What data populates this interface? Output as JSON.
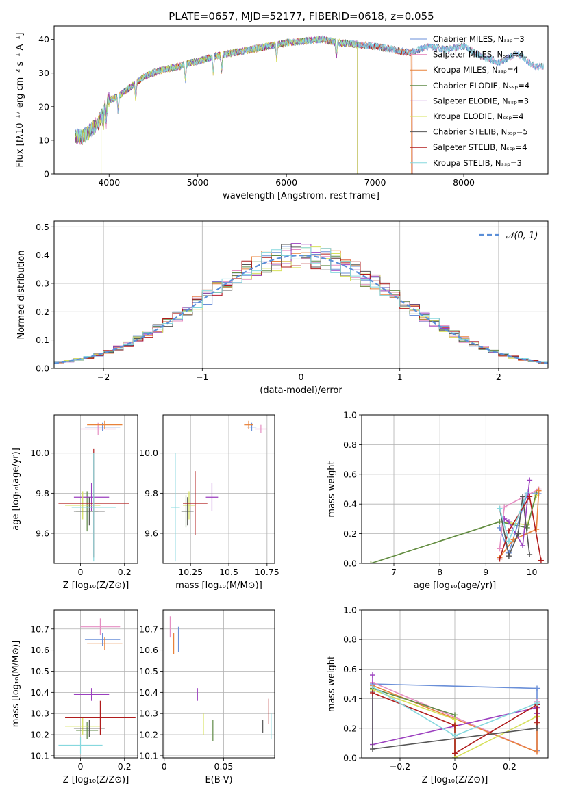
{
  "colors": {
    "chabrier_miles": "#6a8fd8",
    "salpeter_miles": "#e58ec2",
    "kroupa_miles": "#e8823a",
    "chabrier_elodie": "#5f8a46",
    "salpeter_elodie": "#9b3fbf",
    "kroupa_elodie": "#d6e05a",
    "chabrier_stelib": "#555555",
    "salpeter_stelib": "#b01c1c",
    "kroupa_stelib": "#86d8de",
    "normal": "#5b8fd8"
  },
  "chart_data": [
    {
      "id": "spectrum",
      "type": "line",
      "title": "PLATE=0657, MJD=52177, FIBERID=0618, z=0.055",
      "xlabel": "wavelength [Angstrom, rest frame]",
      "ylabel": "Flux [fλ10⁻¹⁷ erg cm⁻² s⁻¹ A⁻¹]",
      "xlim": [
        3380,
        8950
      ],
      "ylim": [
        0,
        44
      ],
      "xticks": [
        4000,
        5000,
        6000,
        7000,
        8000
      ],
      "yticks": [
        0,
        10,
        20,
        30,
        40
      ],
      "legend_position": "top-right",
      "series": [
        {
          "name": "Chabrier MILES, Nₛₛₚ=3",
          "color_key": "chabrier_miles"
        },
        {
          "name": "Salpeter MILES, Nₛₛₚ=4",
          "color_key": "salpeter_miles"
        },
        {
          "name": "Kroupa MILES, Nₛₛₚ=4",
          "color_key": "kroupa_miles"
        },
        {
          "name": "Chabrier ELODIE, Nₛₛₚ=4",
          "color_key": "chabrier_elodie"
        },
        {
          "name": "Salpeter ELODIE, Nₛₛₚ=3",
          "color_key": "salpeter_elodie"
        },
        {
          "name": "Kroupa ELODIE, Nₛₛₚ=4",
          "color_key": "kroupa_elodie"
        },
        {
          "name": "Chabrier STELIB, Nₛₛₚ=5",
          "color_key": "chabrier_stelib"
        },
        {
          "name": "Salpeter STELIB, Nₛₛₚ=4",
          "color_key": "salpeter_stelib"
        },
        {
          "name": "Kroupa STELIB, Nₛₛₚ=3",
          "color_key": "kroupa_stelib"
        }
      ],
      "continuum": {
        "x": [
          3600,
          3700,
          3800,
          3900,
          3950,
          4000,
          4100,
          4200,
          4300,
          4400,
          4500,
          4600,
          4700,
          4800,
          4900,
          5000,
          5200,
          5400,
          5600,
          5800,
          6000,
          6200,
          6400,
          6600,
          6800,
          7000,
          7200,
          7400,
          7600,
          7800,
          8000,
          8200,
          8400,
          8600,
          8800
        ],
        "y": [
          11,
          11,
          13,
          16,
          20,
          22,
          23,
          25,
          27,
          29,
          30,
          31,
          31.5,
          32,
          33,
          33.5,
          35,
          36,
          37,
          38,
          39,
          39.5,
          40,
          39,
          38.5,
          38,
          37,
          36,
          38,
          37,
          38,
          35,
          33,
          36,
          32
        ]
      }
    },
    {
      "id": "residuals",
      "type": "histogram",
      "xlabel": "(data-model)/error",
      "ylabel": "Normed distribution",
      "xlim": [
        -2.5,
        2.5
      ],
      "ylim": [
        0,
        0.52
      ],
      "xticks": [
        -2,
        -1,
        0,
        1,
        2
      ],
      "yticks": [
        0.0,
        0.1,
        0.2,
        0.3,
        0.4,
        0.5
      ],
      "legend_position": "top-right",
      "normal_label": "𝒩(0, 1)",
      "bin_width": 0.1
    },
    {
      "id": "age_vs_Z",
      "type": "scatter",
      "xlabel": "Z [log₁₀(Z/Z⊙)]",
      "ylabel": "age  [log₁₀(age/yr)]",
      "xlim": [
        -0.12,
        0.26
      ],
      "ylim": [
        9.45,
        10.19
      ],
      "xticks": [
        0.0,
        0.2
      ],
      "yticks": [
        9.6,
        9.8,
        10.0
      ],
      "points": [
        {
          "k": "chabrier_miles",
          "x": 0.1,
          "y": 10.13,
          "xerr": 0.08,
          "yerr": 0.02
        },
        {
          "k": "salpeter_miles",
          "x": 0.08,
          "y": 10.12,
          "xerr": 0.08,
          "yerr": 0.03
        },
        {
          "k": "kroupa_miles",
          "x": 0.11,
          "y": 10.14,
          "xerr": 0.08,
          "yerr": 0.02
        },
        {
          "k": "chabrier_elodie",
          "x": 0.03,
          "y": 9.71,
          "xerr": 0.05,
          "yerr": 0.1
        },
        {
          "k": "salpeter_elodie",
          "x": 0.05,
          "y": 9.78,
          "xerr": 0.08,
          "yerr": 0.07
        },
        {
          "k": "kroupa_elodie",
          "x": 0.01,
          "y": 9.74,
          "xerr": 0.08,
          "yerr": 0.07
        },
        {
          "k": "chabrier_stelib",
          "x": 0.04,
          "y": 9.71,
          "xerr": 0.07,
          "yerr": 0.07
        },
        {
          "k": "salpeter_stelib",
          "x": 0.06,
          "y": 9.75,
          "xerr": 0.16,
          "yerr": 0.27
        },
        {
          "k": "kroupa_stelib",
          "x": 0.06,
          "y": 9.73,
          "xerr": 0.1,
          "yerr": 0.27
        }
      ]
    },
    {
      "id": "age_vs_mass",
      "type": "scatter",
      "xlabel": "mass [log₁₀(M/M⊙)]",
      "ylabel": "",
      "xlim": [
        10.07,
        10.8
      ],
      "ylim": [
        9.45,
        10.19
      ],
      "xticks": [
        10.25,
        10.5,
        10.75
      ],
      "yticks": [
        9.6,
        9.8,
        10.0
      ],
      "points": [
        {
          "k": "chabrier_miles",
          "x": 10.65,
          "y": 10.13,
          "xerr": 0.03,
          "yerr": 0.02
        },
        {
          "k": "salpeter_miles",
          "x": 10.71,
          "y": 10.12,
          "xerr": 0.04,
          "yerr": 0.02
        },
        {
          "k": "kroupa_miles",
          "x": 10.63,
          "y": 10.14,
          "xerr": 0.03,
          "yerr": 0.02
        },
        {
          "k": "chabrier_elodie",
          "x": 10.22,
          "y": 9.71,
          "xerr": 0.03,
          "yerr": 0.08
        },
        {
          "k": "salpeter_elodie",
          "x": 10.39,
          "y": 9.78,
          "xerr": 0.04,
          "yerr": 0.07
        },
        {
          "k": "kroupa_elodie",
          "x": 10.24,
          "y": 9.74,
          "xerr": 0.04,
          "yerr": 0.07
        },
        {
          "k": "chabrier_stelib",
          "x": 10.23,
          "y": 9.71,
          "xerr": 0.04,
          "yerr": 0.07
        },
        {
          "k": "salpeter_stelib",
          "x": 10.28,
          "y": 9.75,
          "xerr": 0.08,
          "yerr": 0.16
        },
        {
          "k": "kroupa_stelib",
          "x": 10.15,
          "y": 9.73,
          "xerr": 0.03,
          "yerr": 0.27
        }
      ]
    },
    {
      "id": "weight_vs_age",
      "type": "line",
      "xlabel": "age  [log₁₀(age/yr)]",
      "ylabel": "mass weight",
      "xlim": [
        6.3,
        10.35
      ],
      "ylim": [
        0,
        1.0
      ],
      "xticks": [
        7,
        8,
        9,
        10
      ],
      "yticks": [
        0.0,
        0.2,
        0.4,
        0.6,
        0.8,
        1.0
      ],
      "series": [
        {
          "k": "kroupa_elodie",
          "x": [
            6.5,
            9.3,
            9.9,
            10.1
          ],
          "y": [
            0.0,
            0.28,
            0.26,
            0.46
          ]
        },
        {
          "k": "chabrier_elodie",
          "x": [
            6.5,
            9.3,
            9.9,
            10.1
          ],
          "y": [
            0.0,
            0.28,
            0.24,
            0.48
          ]
        },
        {
          "k": "chabrier_miles",
          "x": [
            9.3,
            9.5,
            9.9,
            10.15
          ],
          "y": [
            0.24,
            0.07,
            0.47,
            0.47
          ]
        },
        {
          "k": "salpeter_miles",
          "x": [
            9.3,
            9.4,
            9.9,
            10.15
          ],
          "y": [
            0.1,
            0.38,
            0.46,
            0.5
          ]
        },
        {
          "k": "kroupa_miles",
          "x": [
            9.3,
            9.6,
            10.1,
            10.15
          ],
          "y": [
            0.04,
            0.16,
            0.23,
            0.49
          ]
        },
        {
          "k": "salpeter_elodie",
          "x": [
            9.4,
            9.5,
            9.8,
            9.95
          ],
          "y": [
            0.3,
            0.28,
            0.12,
            0.56
          ]
        },
        {
          "k": "chabrier_stelib",
          "x": [
            9.3,
            9.5,
            9.7,
            9.8,
            9.95
          ],
          "y": [
            0.37,
            0.05,
            0.2,
            0.45,
            0.06
          ]
        },
        {
          "k": "salpeter_stelib",
          "x": [
            9.3,
            9.5,
            9.95,
            10.2
          ],
          "y": [
            0.03,
            0.22,
            0.45,
            0.02
          ]
        },
        {
          "k": "kroupa_stelib",
          "x": [
            9.3,
            9.5,
            9.9
          ],
          "y": [
            0.37,
            0.15,
            0.48
          ]
        }
      ]
    },
    {
      "id": "mass_vs_Z",
      "type": "scatter",
      "xlabel": "Z [log₁₀(Z/Z⊙)]",
      "ylabel": "mass [log₁₀(M/M⊙)]",
      "xlim": [
        -0.12,
        0.26
      ],
      "ylim": [
        10.09,
        10.79
      ],
      "xticks": [
        0.0,
        0.2
      ],
      "yticks": [
        10.1,
        10.2,
        10.3,
        10.4,
        10.5,
        10.6,
        10.7
      ],
      "points": [
        {
          "k": "chabrier_miles",
          "x": 0.1,
          "y": 10.65,
          "xerr": 0.08,
          "yerr": 0.03
        },
        {
          "k": "salpeter_miles",
          "x": 0.09,
          "y": 10.71,
          "xerr": 0.09,
          "yerr": 0.04
        },
        {
          "k": "kroupa_miles",
          "x": 0.11,
          "y": 10.63,
          "xerr": 0.08,
          "yerr": 0.03
        },
        {
          "k": "chabrier_elodie",
          "x": 0.03,
          "y": 10.22,
          "xerr": 0.05,
          "yerr": 0.04
        },
        {
          "k": "salpeter_elodie",
          "x": 0.05,
          "y": 10.39,
          "xerr": 0.08,
          "yerr": 0.03
        },
        {
          "k": "kroupa_elodie",
          "x": 0.01,
          "y": 10.24,
          "xerr": 0.08,
          "yerr": 0.04
        },
        {
          "k": "chabrier_stelib",
          "x": 0.04,
          "y": 10.23,
          "xerr": 0.07,
          "yerr": 0.04
        },
        {
          "k": "salpeter_stelib",
          "x": 0.09,
          "y": 10.28,
          "xerr": 0.16,
          "yerr": 0.08
        },
        {
          "k": "kroupa_stelib",
          "x": 0.0,
          "y": 10.15,
          "xerr": 0.1,
          "yerr": 0.04
        }
      ]
    },
    {
      "id": "mass_vs_ebv",
      "type": "scatter",
      "xlabel": "E(B-V)",
      "ylabel": "",
      "xlim": [
        -0.001,
        0.093
      ],
      "ylim": [
        10.09,
        10.79
      ],
      "xticks": [
        0.0,
        0.05
      ],
      "yticks": [
        10.1,
        10.2,
        10.3,
        10.4,
        10.5,
        10.6,
        10.7
      ],
      "points": [
        {
          "k": "chabrier_miles",
          "x": 0.012,
          "y": 10.65,
          "xerr": 0,
          "yerr": 0.06
        },
        {
          "k": "salpeter_miles",
          "x": 0.005,
          "y": 10.71,
          "xerr": 0,
          "yerr": 0.05
        },
        {
          "k": "kroupa_miles",
          "x": 0.008,
          "y": 10.63,
          "xerr": 0,
          "yerr": 0.05
        },
        {
          "k": "chabrier_elodie",
          "x": 0.041,
          "y": 10.22,
          "xerr": 0,
          "yerr": 0.05
        },
        {
          "k": "salpeter_elodie",
          "x": 0.028,
          "y": 10.39,
          "xerr": 0,
          "yerr": 0.03
        },
        {
          "k": "kroupa_elodie",
          "x": 0.033,
          "y": 10.25,
          "xerr": 0,
          "yerr": 0.05
        },
        {
          "k": "chabrier_stelib",
          "x": 0.083,
          "y": 10.24,
          "xerr": 0,
          "yerr": 0.03
        },
        {
          "k": "salpeter_stelib",
          "x": 0.088,
          "y": 10.31,
          "xerr": 0,
          "yerr": 0.06
        },
        {
          "k": "kroupa_stelib",
          "x": 0.09,
          "y": 10.24,
          "xerr": 0,
          "yerr": 0.06
        }
      ]
    },
    {
      "id": "weight_vs_Z",
      "type": "line",
      "xlabel": "Z [log₁₀(Z/Z⊙)]",
      "ylabel": "mass weight",
      "xlim": [
        -0.34,
        0.34
      ],
      "ylim": [
        0,
        1.0
      ],
      "xticks": [
        -0.2,
        0.0,
        0.2
      ],
      "yticks": [
        0.0,
        0.2,
        0.4,
        0.6,
        0.8,
        1.0
      ],
      "series": [
        {
          "k": "chabrier_miles",
          "x": [
            -0.3,
            0.3,
            0.3
          ],
          "y": [
            0.5,
            0.47,
            0.05
          ]
        },
        {
          "k": "salpeter_miles",
          "x": [
            -0.3,
            0.3,
            0.3
          ],
          "y": [
            0.51,
            0.04,
            0.38
          ]
        },
        {
          "k": "kroupa_miles",
          "x": [
            -0.3,
            0.3,
            0.3
          ],
          "y": [
            0.49,
            0.04,
            0.23
          ]
        },
        {
          "k": "chabrier_elodie",
          "x": [
            -0.3,
            0.0,
            0.0
          ],
          "y": [
            0.47,
            0.29,
            0.0
          ]
        },
        {
          "k": "salpeter_elodie",
          "x": [
            -0.3,
            -0.3,
            0.3,
            0.3
          ],
          "y": [
            0.56,
            0.09,
            0.34,
            0.3
          ]
        },
        {
          "k": "kroupa_elodie",
          "x": [
            -0.3,
            0.0,
            0.0,
            0.3
          ],
          "y": [
            0.46,
            0.26,
            0.0,
            0.28
          ]
        },
        {
          "k": "chabrier_stelib",
          "x": [
            -0.3,
            -0.3,
            0.3,
            0.3
          ],
          "y": [
            0.45,
            0.06,
            0.2,
            0.36
          ]
        },
        {
          "k": "salpeter_stelib",
          "x": [
            -0.3,
            0.0,
            0.0,
            0.3,
            0.3
          ],
          "y": [
            0.44,
            0.22,
            0.03,
            0.36,
            0.24
          ]
        },
        {
          "k": "kroupa_stelib",
          "x": [
            -0.3,
            0.0,
            0.3
          ],
          "y": [
            0.48,
            0.15,
            0.37
          ]
        }
      ]
    }
  ]
}
